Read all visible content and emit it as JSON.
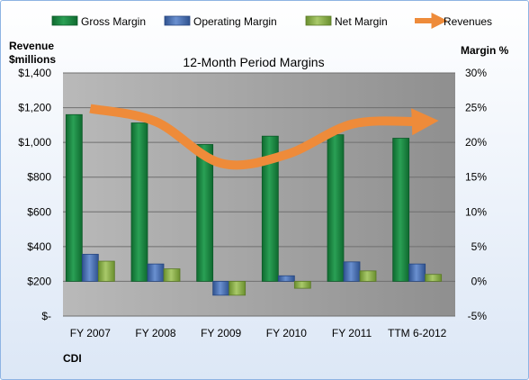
{
  "chart_data": {
    "type": "bar",
    "title": "12-Month Period Margins",
    "ylabel_left": [
      "Revenue",
      "$millions"
    ],
    "ylabel_right": "Margin %",
    "company": "CDI",
    "categories": [
      "FY 2007",
      "FY 2008",
      "FY 2009",
      "FY 2010",
      "FY 2011",
      "TTM 6-2012"
    ],
    "y_left": {
      "min": 0,
      "max": 1400,
      "step": 200,
      "tick_labels": [
        "$-",
        "$200",
        "$400",
        "$600",
        "$800",
        "$1,000",
        "$1,200",
        "$1,400"
      ]
    },
    "y_right": {
      "min": -5,
      "max": 30,
      "step": 5,
      "tick_labels": [
        "-5%",
        "0%",
        "5%",
        "10%",
        "15%",
        "20%",
        "25%",
        "30%"
      ]
    },
    "series": [
      {
        "name": "Gross Margin",
        "axis": "right",
        "kind": "bar",
        "color": "#1e8c46",
        "values": [
          24.0,
          22.8,
          19.7,
          20.9,
          21.1,
          20.6
        ]
      },
      {
        "name": "Operating Margin",
        "axis": "right",
        "kind": "bar",
        "color": "#4a72b8",
        "values": [
          3.9,
          2.5,
          -2.0,
          0.8,
          2.8,
          2.5
        ]
      },
      {
        "name": "Net Margin",
        "axis": "right",
        "kind": "bar",
        "color": "#8db34a",
        "values": [
          2.9,
          1.8,
          -2.0,
          -1.0,
          1.5,
          1.0
        ]
      },
      {
        "name": "Revenues",
        "axis": "left",
        "kind": "line",
        "color": "#ee8b3a",
        "values": [
          1195,
          1120,
          880,
          930,
          1105,
          1120
        ]
      }
    ],
    "legend_position": "top",
    "grid": true
  }
}
